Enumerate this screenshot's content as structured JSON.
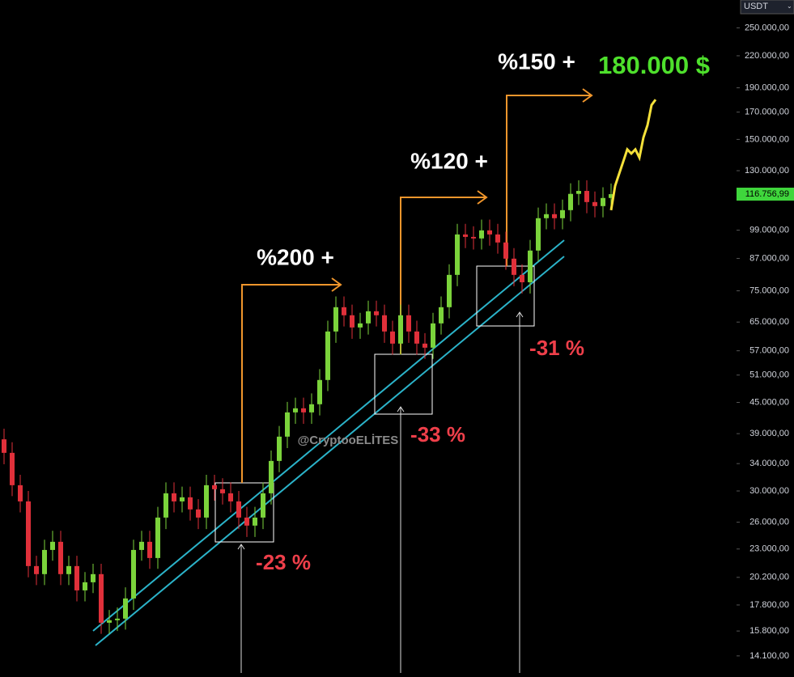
{
  "chart_data": {
    "type": "candlestick",
    "currency": "USDT",
    "log_scale": true,
    "ylim": [
      12800,
      284000
    ],
    "yticks": [
      {
        "value": 250000,
        "label": "250.000,00"
      },
      {
        "value": 220000,
        "label": "220.000,00"
      },
      {
        "value": 190000,
        "label": "190.000,00"
      },
      {
        "value": 170000,
        "label": "170.000,00"
      },
      {
        "value": 150000,
        "label": "150.000,00"
      },
      {
        "value": 130000,
        "label": "130.000,00"
      },
      {
        "value": 99000,
        "label": "99.000,00"
      },
      {
        "value": 87000,
        "label": "87.000,00"
      },
      {
        "value": 75000,
        "label": "75.000,00"
      },
      {
        "value": 65000,
        "label": "65.000,00"
      },
      {
        "value": 57000,
        "label": "57.000,00"
      },
      {
        "value": 51000,
        "label": "51.000,00"
      },
      {
        "value": 45000,
        "label": "45.000,00"
      },
      {
        "value": 39000,
        "label": "39.000,00"
      },
      {
        "value": 34000,
        "label": "34.000,00"
      },
      {
        "value": 30000,
        "label": "30.000,00"
      },
      {
        "value": 26000,
        "label": "26.000,00"
      },
      {
        "value": 23000,
        "label": "23.000,00"
      },
      {
        "value": 20200,
        "label": "20.200,00"
      },
      {
        "value": 17800,
        "label": "17.800,00"
      },
      {
        "value": 15800,
        "label": "15.800,00"
      },
      {
        "value": 14100,
        "label": "14.100,00"
      }
    ],
    "last_price": {
      "value": 116756.99,
      "label": "116.756,99"
    },
    "up_color": "#7bd33b",
    "down_color": "#e0303a",
    "open": [
      38000,
      35720,
      30800,
      28600,
      21270,
      20500,
      22900,
      23770,
      20500,
      21270,
      19030,
      19750,
      20500,
      16410,
      16600,
      16720,
      18340,
      22900,
      23770,
      22070,
      26560,
      29680,
      28600,
      29140,
      27570,
      26560,
      30800,
      30240,
      29680,
      28600,
      26560,
      25600,
      26560,
      29680,
      34420,
      38470,
      42990,
      43800,
      42990,
      44620,
      49860,
      62260,
      69580,
      67060,
      63420,
      64610,
      68300,
      67060,
      62260,
      58900,
      67060,
      62260,
      58900,
      57810,
      64610,
      69580,
      80680,
      97090,
      96000,
      95330,
      98910,
      97090,
      93580,
      86900,
      80680,
      78000,
      90180,
      104580,
      106530,
      104580,
      108510,
      116900,
      118500,
      112600,
      110540,
      114720
    ],
    "high": [
      39900,
      37500,
      32300,
      30000,
      22300,
      24000,
      25000,
      25000,
      22300,
      22300,
      20700,
      21500,
      21500,
      17400,
      17600,
      19300,
      24000,
      25000,
      25000,
      27900,
      31200,
      31200,
      30600,
      30600,
      28900,
      32300,
      32300,
      31800,
      31200,
      30000,
      27900,
      27900,
      31200,
      36100,
      40400,
      45100,
      46000,
      46000,
      46900,
      52400,
      65400,
      73100,
      73100,
      70400,
      67800,
      71700,
      71700,
      70400,
      65400,
      70400,
      70400,
      65400,
      61800,
      67800,
      73100,
      84700,
      101900,
      101900,
      100800,
      103900,
      103900,
      101900,
      98300,
      91200,
      84700,
      94700,
      109800,
      111900,
      111900,
      113900,
      122700,
      124400,
      124400,
      118200,
      120500,
      122600
    ],
    "low": [
      33900,
      29300,
      27200,
      20200,
      19500,
      19500,
      21800,
      19500,
      19500,
      18100,
      18100,
      18800,
      15600,
      15600,
      15800,
      15900,
      17400,
      21800,
      21000,
      21000,
      25200,
      27200,
      27200,
      26200,
      25200,
      25200,
      28700,
      28200,
      27200,
      25200,
      24300,
      24300,
      25200,
      28200,
      32700,
      36500,
      40800,
      40800,
      40800,
      42400,
      47400,
      59100,
      63700,
      60200,
      60200,
      61400,
      63700,
      59100,
      56000,
      56000,
      59100,
      56000,
      54900,
      54900,
      61400,
      66100,
      76600,
      91200,
      90600,
      90600,
      92200,
      88900,
      82600,
      76600,
      74100,
      74100,
      85700,
      99400,
      99400,
      99400,
      103100,
      111100,
      107000,
      105000,
      105000,
      109000
    ],
    "close": [
      35720,
      30800,
      28600,
      21270,
      20500,
      22900,
      23770,
      20500,
      21270,
      19030,
      19750,
      20500,
      16410,
      16600,
      16720,
      18340,
      22900,
      23770,
      22070,
      26560,
      29680,
      28600,
      29140,
      27570,
      26560,
      30800,
      30240,
      29680,
      28600,
      26560,
      25600,
      26560,
      29680,
      34420,
      38470,
      42990,
      43800,
      42990,
      44620,
      49860,
      62260,
      69580,
      67060,
      63420,
      64610,
      68300,
      67060,
      62260,
      58900,
      67060,
      62260,
      58900,
      57810,
      64610,
      69580,
      80680,
      97090,
      96000,
      95330,
      98910,
      97090,
      93580,
      86900,
      80680,
      78000,
      90180,
      104580,
      106530,
      104580,
      108510,
      116900,
      118500,
      112600,
      110540,
      114720,
      116757
    ],
    "projection": {
      "color": "#f5e13a",
      "values": [
        108500,
        121300,
        128200,
        135500,
        143300,
        140600,
        143300,
        138000,
        151400,
        160100,
        175600,
        180000
      ]
    },
    "annotations": [
      "%200 +",
      "%120 +",
      "%150 +",
      "180.000 $",
      "-23 %",
      "-33 %",
      "-31 %",
      "@CryptooELİTES"
    ]
  }
}
